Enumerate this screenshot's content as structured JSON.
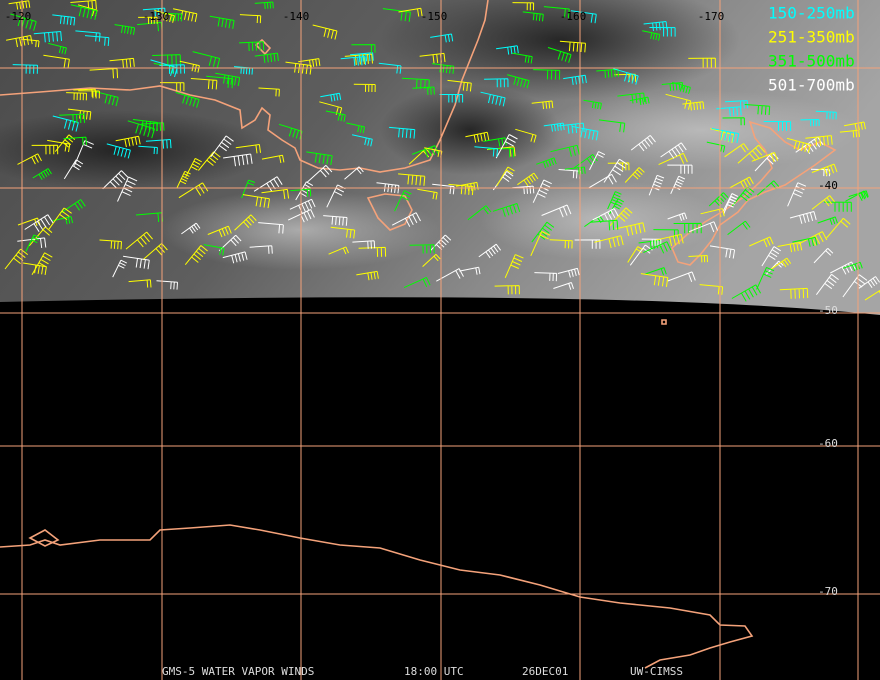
{
  "longitude_labels": [
    "-120",
    "-130",
    "-140",
    "-150",
    "-160",
    "-170"
  ],
  "latitude_labels": [
    "-40",
    "-50",
    "-60",
    "-70"
  ],
  "legend": [
    {
      "label": "150-250mb",
      "color": "#00ffff"
    },
    {
      "label": "251-350mb",
      "color": "#ffff00"
    },
    {
      "label": "351-500mb",
      "color": "#00ff00"
    },
    {
      "label": "501-700mb",
      "color": "#ffffff"
    }
  ],
  "footer": [
    "GMS-5 WATER VAPOR WINDS",
    "18:00 UTC",
    "26DEC01",
    "UW-CIMSS"
  ]
}
